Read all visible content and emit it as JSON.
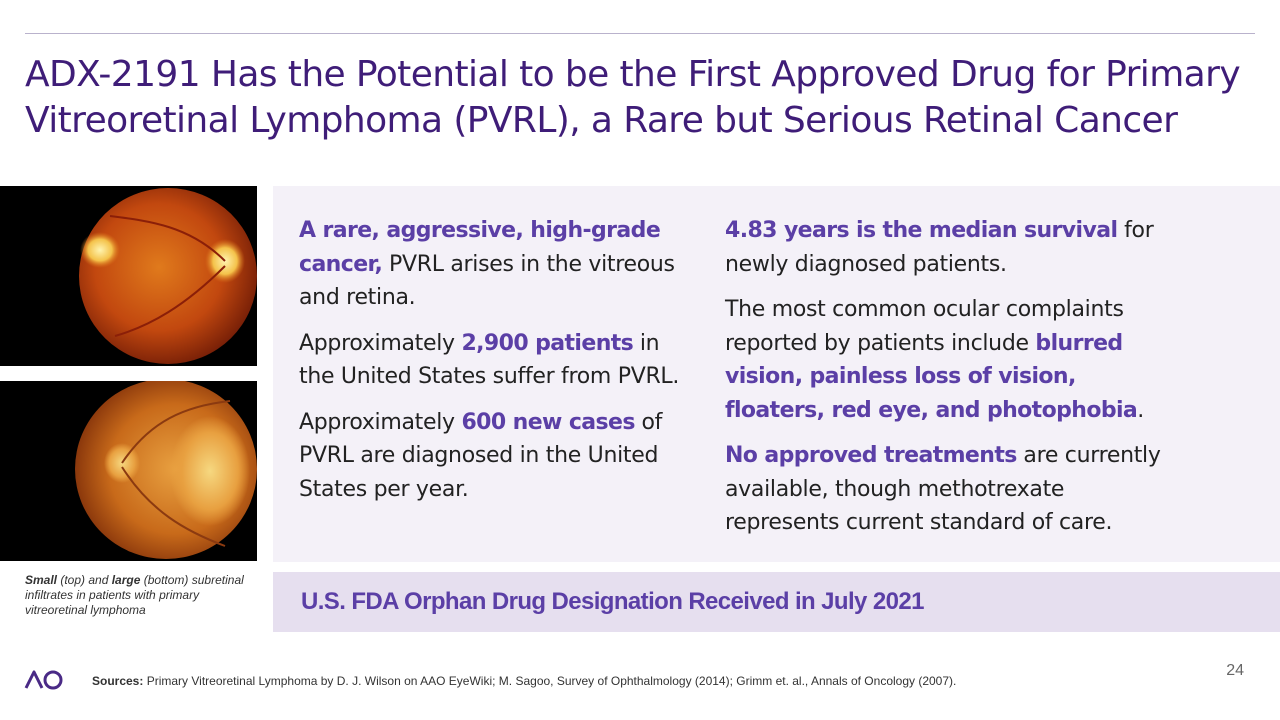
{
  "title": {
    "line1": "ADX-2191 Has the Potential to be the First Approved Drug for Primary",
    "line2": "Vitreoretinal Lymphoma (PVRL), a Rare but Serious Retinal Cancer"
  },
  "caption": {
    "small": "Small",
    "small_rest": " (top) and ",
    "large": "large",
    "large_rest": " (bottom) subretinal infiltrates in patients with primary vitreoretinal lymphoma"
  },
  "left_column": {
    "p1_hl": "A rare, aggressive, high-grade cancer,",
    "p1_rest": " PVRL arises in the vitreous and retina.",
    "p2_pre": "Approximately ",
    "p2_hl": "2,900 patients",
    "p2_rest": " in the United States suffer from PVRL.",
    "p3_pre": "Approximately ",
    "p3_hl": "600 new cases",
    "p3_rest": " of PVRL are diagnosed in the United States per year."
  },
  "right_column": {
    "p1_hl": "4.83 years is the median survival",
    "p1_rest": " for newly diagnosed patients.",
    "p2_pre": "The most common ocular complaints reported by patients include ",
    "p2_hl": "blurred vision, painless loss of vision, floaters, red eye, and photophobia",
    "p2_rest": ".",
    "p3_hl": "No approved treatments",
    "p3_rest": " are currently available, though methotrexate represents current standard of care."
  },
  "banner": "U.S. FDA Orphan Drug Designation Received in July 2021",
  "footer": {
    "sources_label": "Sources:",
    "sources_text": " Primary Vitreoretinal Lymphoma by D. J. Wilson on AAO EyeWiki; M. Sagoo, Survey of Ophthalmology (2014); Grimm et. al., Annals of Oncology (2007).",
    "page_number": "24"
  },
  "colors": {
    "title": "#3f1d78",
    "highlight": "#5b3fa6",
    "panel": "#f4f1f8",
    "banner": "#e6dfef"
  }
}
